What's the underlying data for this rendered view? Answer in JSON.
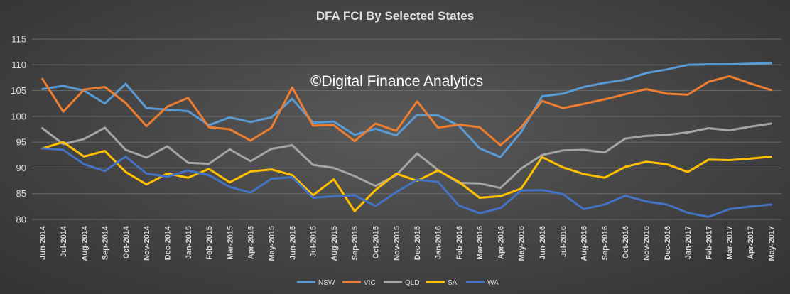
{
  "watermark": "©Digital Finance Analytics",
  "chart_data": {
    "type": "line",
    "title": "DFA FCI By Selected States",
    "xlabel": "",
    "ylabel": "",
    "ylim": [
      80,
      115
    ],
    "yticks": [
      80,
      85,
      90,
      95,
      100,
      105,
      110,
      115
    ],
    "grid": true,
    "legend_position": "bottom",
    "categories": [
      "Jun-2014",
      "Jul-2014",
      "Aug-2014",
      "Sep-2014",
      "Oct-2014",
      "Nov-2014",
      "Dec-2014",
      "Jan-2015",
      "Feb-2015",
      "Mar-2015",
      "Apr-2015",
      "May-2015",
      "Jun-2015",
      "Jul-2015",
      "Aug-2015",
      "Sep-2015",
      "Oct-2015",
      "Nov-2015",
      "Dec-2015",
      "Jan-2016",
      "Feb-2016",
      "Mar-2016",
      "Apr-2016",
      "May-2016",
      "Jun-2016",
      "Jul-2016",
      "Aug-2016",
      "Sep-2016",
      "Oct-2016",
      "Nov-2016",
      "Dec-2016",
      "Jan-2017",
      "Feb-2017",
      "Mar-2017",
      "Apr-2017",
      "May-2017"
    ],
    "series": [
      {
        "name": "NSW",
        "color": "#5b9bd5",
        "values": [
          105.3,
          105.9,
          105.0,
          102.5,
          106.3,
          101.6,
          101.3,
          101.0,
          98.3,
          99.8,
          98.9,
          99.8,
          103.4,
          98.8,
          99.0,
          96.4,
          97.6,
          96.3,
          100.3,
          100.2,
          98.2,
          93.8,
          92.1,
          97.0,
          103.9,
          104.4,
          105.7,
          106.5,
          107.1,
          108.4,
          109.1,
          110.0,
          110.1,
          110.1,
          110.2,
          110.3
        ]
      },
      {
        "name": "VIC",
        "color": "#ed7d31",
        "values": [
          107.3,
          100.9,
          105.2,
          105.7,
          102.6,
          98.1,
          101.9,
          103.6,
          97.9,
          97.5,
          95.3,
          97.8,
          105.6,
          98.2,
          98.3,
          95.2,
          98.6,
          97.2,
          102.9,
          97.8,
          98.4,
          97.9,
          94.4,
          97.9,
          103.0,
          101.6,
          102.4,
          103.3,
          104.3,
          105.3,
          104.4,
          104.2,
          106.7,
          107.8,
          106.4,
          105.1
        ]
      },
      {
        "name": "QLD",
        "color": "#a5a5a5",
        "values": [
          97.7,
          94.6,
          95.6,
          97.8,
          93.5,
          92.0,
          94.2,
          91.0,
          90.8,
          93.6,
          91.3,
          93.7,
          94.4,
          90.6,
          90.0,
          88.4,
          86.5,
          88.6,
          92.8,
          89.6,
          87.1,
          87.0,
          86.1,
          89.9,
          92.5,
          93.4,
          93.5,
          93.0,
          95.7,
          96.2,
          96.4,
          96.9,
          97.7,
          97.3,
          98.0,
          98.6
        ]
      },
      {
        "name": "SA",
        "color": "#ffc000",
        "values": [
          93.8,
          95.0,
          92.2,
          93.3,
          89.2,
          86.8,
          88.9,
          88.1,
          89.8,
          87.2,
          89.3,
          89.7,
          88.6,
          84.7,
          87.8,
          81.6,
          85.7,
          88.9,
          87.5,
          89.5,
          87.3,
          84.2,
          84.5,
          86.0,
          92.1,
          90.1,
          88.8,
          88.1,
          90.2,
          91.2,
          90.7,
          89.2,
          91.6,
          91.5,
          91.8,
          92.2
        ]
      },
      {
        "name": "WA",
        "color": "#4472c4",
        "values": [
          93.8,
          93.5,
          90.7,
          89.4,
          92.2,
          88.9,
          88.3,
          89.5,
          88.6,
          86.3,
          85.2,
          87.9,
          88.2,
          84.2,
          84.5,
          84.7,
          82.6,
          85.3,
          87.7,
          87.3,
          82.7,
          81.2,
          82.2,
          85.6,
          85.7,
          84.9,
          82.0,
          82.9,
          84.6,
          83.5,
          82.9,
          81.3,
          80.5,
          82.0,
          82.5,
          82.9
        ]
      }
    ]
  }
}
